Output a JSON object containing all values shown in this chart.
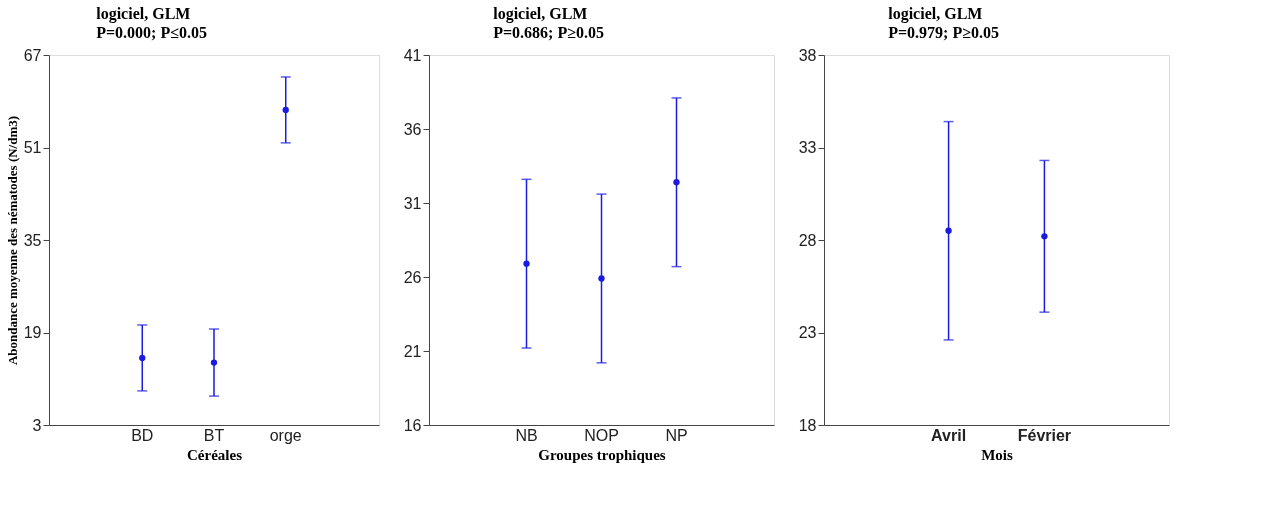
{
  "chart_data": [
    {
      "type": "scatter",
      "title": "logiciel, GLM",
      "subtitle": "P=0.000; P≤0.05",
      "xlabel": "Céréales",
      "ylabel": "Abondance moyenne des nématodes (N/dm3)",
      "categories": [
        "BD",
        "BT",
        "orge"
      ],
      "series": [
        {
          "color": "#1a1ae0",
          "values": [
            14.6,
            13.8,
            57.5
          ],
          "errors": [
            5.7,
            5.8,
            5.7
          ]
        }
      ],
      "ylim": [
        3,
        67
      ],
      "yticks": [
        3,
        19,
        35,
        51,
        67
      ],
      "grid": false,
      "marker": "circle"
    },
    {
      "type": "scatter",
      "title": "logiciel, GLM",
      "subtitle": "P=0.686; P≥0.05",
      "xlabel": "Groupes trophiques",
      "categories": [
        "NB",
        "NOP",
        "NP"
      ],
      "series": [
        {
          "color": "#1a1ae0",
          "values": [
            26.9,
            25.9,
            32.4
          ],
          "errors": [
            5.7,
            5.7,
            5.7
          ]
        }
      ],
      "ylim": [
        16,
        41
      ],
      "yticks": [
        16,
        21,
        26,
        31,
        36,
        41
      ],
      "grid": false,
      "marker": "circle"
    },
    {
      "type": "scatter",
      "title": "logiciel, GLM",
      "subtitle": "P=0.979; P≥0.05",
      "xlabel": "Mois",
      "categories": [
        "Avril",
        "Février"
      ],
      "series": [
        {
          "color": "#1a1ae0",
          "values": [
            28.5,
            28.2
          ],
          "errors": [
            5.9,
            4.1
          ]
        }
      ],
      "ylim": [
        18,
        38
      ],
      "yticks": [
        18,
        23,
        28,
        33,
        38
      ],
      "grid": false,
      "marker": "circle"
    }
  ]
}
